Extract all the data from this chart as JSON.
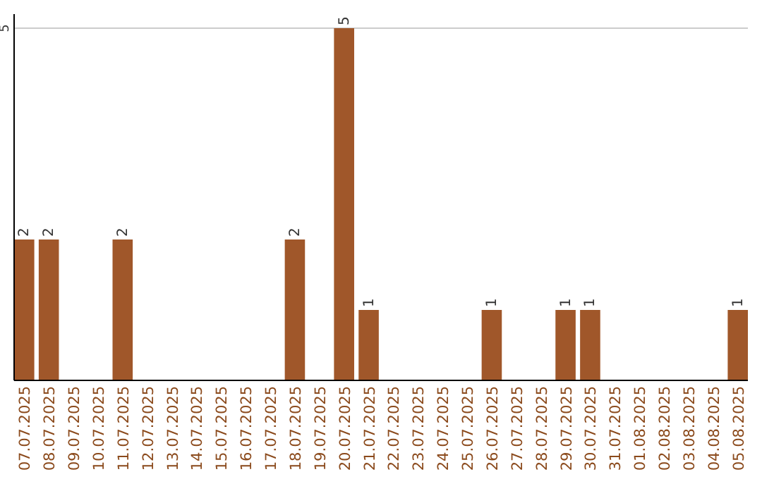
{
  "chart_data": {
    "type": "bar",
    "categories": [
      "07.07.2025",
      "08.07.2025",
      "09.07.2025",
      "10.07.2025",
      "11.07.2025",
      "12.07.2025",
      "13.07.2025",
      "14.07.2025",
      "15.07.2025",
      "16.07.2025",
      "17.07.2025",
      "18.07.2025",
      "19.07.2025",
      "20.07.2025",
      "21.07.2025",
      "22.07.2025",
      "23.07.2025",
      "24.07.2025",
      "25.07.2025",
      "26.07.2025",
      "27.07.2025",
      "28.07.2025",
      "29.07.2025",
      "30.07.2025",
      "31.07.2025",
      "01.08.2025",
      "02.08.2025",
      "03.08.2025",
      "04.08.2025",
      "05.08.2025"
    ],
    "values": [
      2,
      2,
      0,
      0,
      2,
      0,
      0,
      0,
      0,
      0,
      0,
      2,
      0,
      5,
      1,
      0,
      0,
      0,
      0,
      1,
      0,
      0,
      1,
      1,
      0,
      0,
      0,
      0,
      0,
      1
    ],
    "value_labels": [
      "2",
      "2",
      null,
      null,
      "2",
      null,
      null,
      null,
      null,
      null,
      null,
      "2",
      null,
      "5",
      "1",
      null,
      null,
      null,
      null,
      "1",
      null,
      null,
      "1",
      "1",
      null,
      null,
      null,
      null,
      null,
      "1"
    ],
    "color": "#a0572a",
    "ylim": [
      0,
      5
    ],
    "yticks": [
      5
    ],
    "ref_lines": [
      {
        "axis": "y",
        "value": 5,
        "color": "#cccccc"
      }
    ]
  }
}
